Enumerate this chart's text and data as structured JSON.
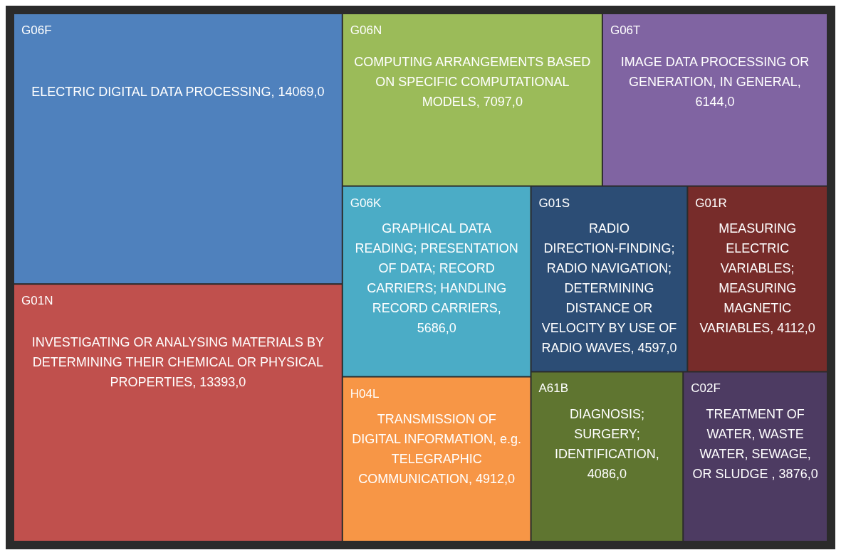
{
  "chart_data": {
    "type": "other",
    "categories": [
      "G06F",
      "G01N",
      "G06N",
      "G06T",
      "G06K",
      "H04L",
      "G01S",
      "G01R",
      "A61B",
      "C02F"
    ],
    "values": [
      14069,
      13393,
      7097,
      6144,
      5686,
      4912,
      4597,
      4112,
      4086,
      3876
    ],
    "value_labels": [
      "ELECTRIC DIGITAL DATA PROCESSING, 14069,0",
      "INVESTIGATING OR ANALYSING MATERIALS BY DETERMINING THEIR CHEMICAL OR PHYSICAL PROPERTIES, 13393,0",
      "COMPUTING ARRANGEMENTS BASED ON SPECIFIC COMPUTATIONAL MODELS, 7097,0",
      "IMAGE DATA PROCESSING OR GENERATION, IN GENERAL, 6144,0",
      "GRAPHICAL DATA READING; PRESENTATION OF DATA; RECORD CARRIERS; HANDLING RECORD CARRIERS, 5686,0",
      "TRANSMISSION OF DIGITAL INFORMATION, e.g. TELEGRAPHIC COMMUNICATION, 4912,0",
      "RADIO DIRECTION-FINDING; RADIO NAVIGATION; DETERMINING DISTANCE OR VELOCITY BY USE OF RADIO WAVES, 4597,0",
      "MEASURING ELECTRIC VARIABLES; MEASURING MAGNETIC VARIABLES, 4112,0",
      "DIAGNOSIS; SURGERY; IDENTIFICATION, 4086,0",
      "TREATMENT OF WATER, WASTE WATER, SEWAGE, OR SLUDGE , 3876,0"
    ],
    "colors": [
      "#4f81bd",
      "#c0504d",
      "#9bbb59",
      "#8064a2",
      "#4bacc6",
      "#f79646",
      "#2c4d75",
      "#772c2a",
      "#5f7530",
      "#4d3b62"
    ]
  }
}
